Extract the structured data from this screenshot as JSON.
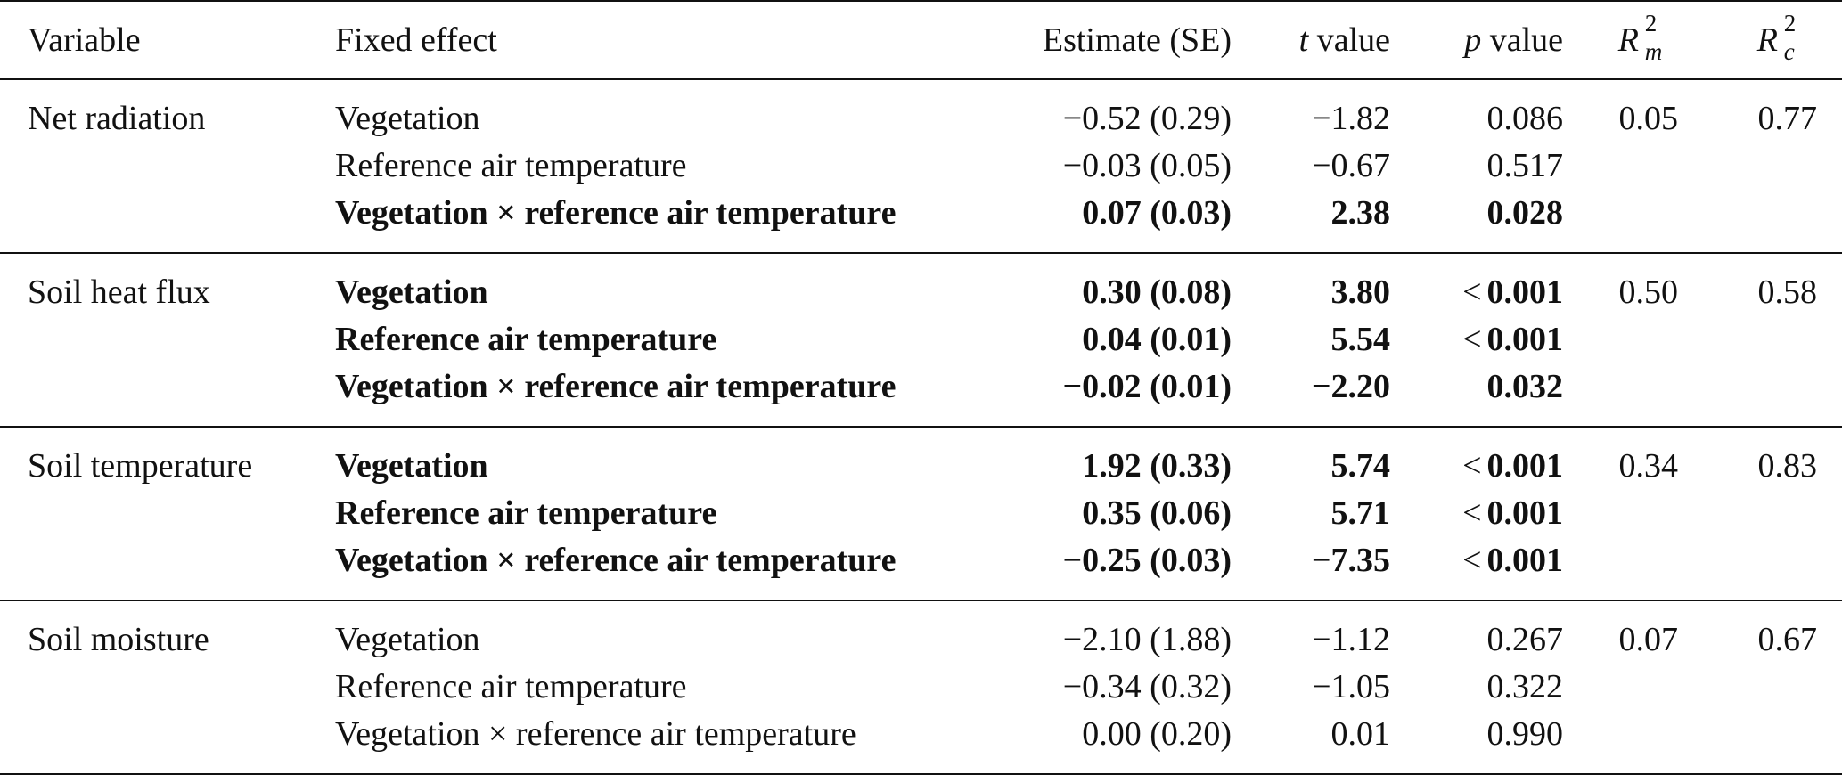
{
  "header": {
    "variable": "Variable",
    "fixed_effect": "Fixed effect",
    "estimate": "Estimate (SE)",
    "t_italic": "t",
    "t_rest": " value",
    "p_italic": "p",
    "p_rest": " value",
    "rm_base": "R",
    "rm_sup": "2",
    "rm_sub": "m",
    "rc_base": "R",
    "rc_sup": "2",
    "rc_sub": "c"
  },
  "groups": [
    {
      "variable": "Net radiation",
      "r2m": "0.05",
      "r2c": "0.77",
      "rows": [
        {
          "effect": "Vegetation",
          "estimate": "−0.52 (0.29)",
          "t": "−1.82",
          "p_prefix": "",
          "p": "0.086",
          "bold": false
        },
        {
          "effect": "Reference air temperature",
          "estimate": "−0.03 (0.05)",
          "t": "−0.67",
          "p_prefix": "",
          "p": "0.517",
          "bold": false
        },
        {
          "effect": "Vegetation × reference air temperature",
          "estimate": "0.07 (0.03)",
          "t": "2.38",
          "p_prefix": "",
          "p": "0.028",
          "bold": true
        }
      ]
    },
    {
      "variable": "Soil heat flux",
      "r2m": "0.50",
      "r2c": "0.58",
      "rows": [
        {
          "effect": "Vegetation",
          "estimate": "0.30 (0.08)",
          "t": "3.80",
          "p_prefix": "<",
          "p": "0.001",
          "bold": true
        },
        {
          "effect": "Reference air temperature",
          "estimate": "0.04 (0.01)",
          "t": "5.54",
          "p_prefix": "<",
          "p": "0.001",
          "bold": true
        },
        {
          "effect": "Vegetation × reference air temperature",
          "estimate": "−0.02 (0.01)",
          "t": "−2.20",
          "p_prefix": "",
          "p": "0.032",
          "bold": true
        }
      ]
    },
    {
      "variable": "Soil temperature",
      "r2m": "0.34",
      "r2c": "0.83",
      "rows": [
        {
          "effect": "Vegetation",
          "estimate": "1.92 (0.33)",
          "t": "5.74",
          "p_prefix": "<",
          "p": "0.001",
          "bold": true
        },
        {
          "effect": "Reference air temperature",
          "estimate": "0.35 (0.06)",
          "t": "5.71",
          "p_prefix": "<",
          "p": "0.001",
          "bold": true
        },
        {
          "effect": "Vegetation × reference air temperature",
          "estimate": "−0.25 (0.03)",
          "t": "−7.35",
          "p_prefix": "<",
          "p": "0.001",
          "bold": true
        }
      ]
    },
    {
      "variable": "Soil moisture",
      "r2m": "0.07",
      "r2c": "0.67",
      "rows": [
        {
          "effect": "Vegetation",
          "estimate": "−2.10 (1.88)",
          "t": "−1.12",
          "p_prefix": "",
          "p": "0.267",
          "bold": false
        },
        {
          "effect": "Reference air temperature",
          "estimate": "−0.34 (0.32)",
          "t": "−1.05",
          "p_prefix": "",
          "p": "0.322",
          "bold": false
        },
        {
          "effect": "Vegetation × reference air temperature",
          "estimate": "0.00 (0.20)",
          "t": "0.01",
          "p_prefix": "",
          "p": "0.990",
          "bold": false
        }
      ]
    }
  ]
}
